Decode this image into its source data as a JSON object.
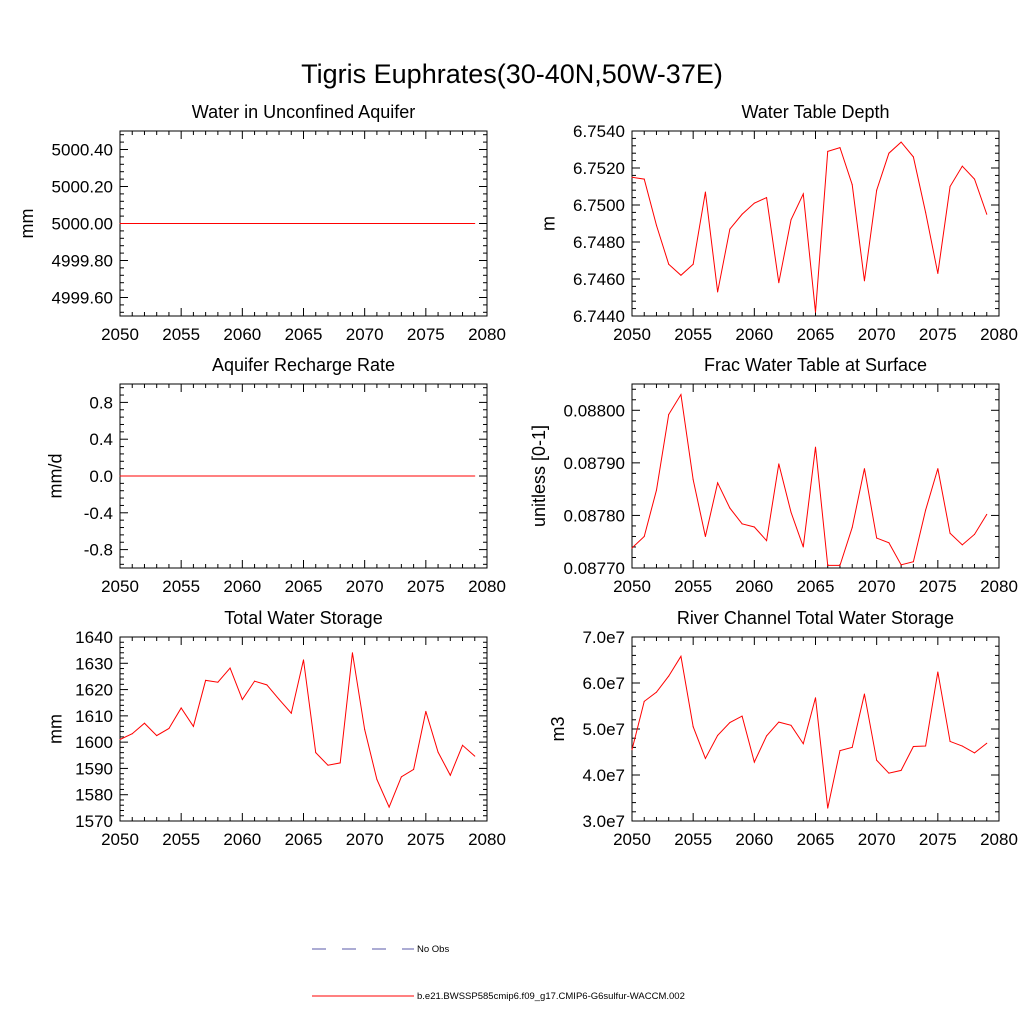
{
  "title": "Tigris Euphrates(30-40N,50W-37E)",
  "colors": {
    "model": "#ff0000",
    "obs": "#5a5aa8",
    "axes": "#000000"
  },
  "legend": {
    "obs_label": "No Obs",
    "model_label": "b.e21.BWSSP585cmip6.f09_g17.CMIP6-G6sulfur-WACCM.002"
  },
  "chart_data": [
    {
      "type": "line",
      "title": "Water in Unconfined Aquifer",
      "ylabel": "mm",
      "xlim": [
        2050,
        2080
      ],
      "ylim": [
        4999.5,
        5000.5
      ],
      "xticks": [
        2050,
        2055,
        2060,
        2065,
        2070,
        2075,
        2080
      ],
      "xtick_labels": [
        "2050",
        "2055",
        "2060",
        "2065",
        "2070",
        "2075",
        "2080"
      ],
      "yticks": [
        4999.6,
        4999.8,
        5000.0,
        5000.2,
        5000.4
      ],
      "ytick_labels": [
        "4999.60",
        "4999.80",
        "5000.00",
        "5000.20",
        "5000.40"
      ],
      "x": [
        2050,
        2051,
        2052,
        2053,
        2054,
        2055,
        2056,
        2057,
        2058,
        2059,
        2060,
        2061,
        2062,
        2063,
        2064,
        2065,
        2066,
        2067,
        2068,
        2069,
        2070,
        2071,
        2072,
        2073,
        2074,
        2075,
        2076,
        2077,
        2078,
        2079
      ],
      "values": [
        5000,
        5000,
        5000,
        5000,
        5000,
        5000,
        5000,
        5000,
        5000,
        5000,
        5000,
        5000,
        5000,
        5000,
        5000,
        5000,
        5000,
        5000,
        5000,
        5000,
        5000,
        5000,
        5000,
        5000,
        5000,
        5000,
        5000,
        5000,
        5000,
        5000
      ]
    },
    {
      "type": "line",
      "title": "Water Table Depth",
      "ylabel": "m",
      "xlim": [
        2050,
        2080
      ],
      "ylim": [
        6.744,
        6.754
      ],
      "xticks": [
        2050,
        2055,
        2060,
        2065,
        2070,
        2075,
        2080
      ],
      "xtick_labels": [
        "2050",
        "2055",
        "2060",
        "2065",
        "2070",
        "2075",
        "2080"
      ],
      "yticks": [
        6.744,
        6.746,
        6.748,
        6.75,
        6.752,
        6.754
      ],
      "ytick_labels": [
        "6.7440",
        "6.7460",
        "6.7480",
        "6.7500",
        "6.7520",
        "6.7540"
      ],
      "x": [
        2050,
        2051,
        2052,
        2053,
        2054,
        2055,
        2056,
        2057,
        2058,
        2059,
        2060,
        2061,
        2062,
        2063,
        2064,
        2065,
        2066,
        2067,
        2068,
        2069,
        2070,
        2071,
        2072,
        2073,
        2074,
        2075,
        2076,
        2077,
        2078,
        2079
      ],
      "values": [
        6.7515,
        6.7514,
        6.7489,
        6.7468,
        6.7462,
        6.7468,
        6.7507,
        6.7453,
        6.7487,
        6.7495,
        6.7501,
        6.7504,
        6.7458,
        6.7492,
        6.7506,
        6.7442,
        6.7529,
        6.7531,
        6.7511,
        6.7459,
        6.7508,
        6.7528,
        6.7534,
        6.7526,
        6.7496,
        6.7463,
        6.751,
        6.7521,
        6.7514,
        6.7495
      ]
    },
    {
      "type": "line",
      "title": "Aquifer Recharge Rate",
      "ylabel": "mm/d",
      "xlim": [
        2050,
        2080
      ],
      "ylim": [
        -1.0,
        1.0
      ],
      "xticks": [
        2050,
        2055,
        2060,
        2065,
        2070,
        2075,
        2080
      ],
      "xtick_labels": [
        "2050",
        "2055",
        "2060",
        "2065",
        "2070",
        "2075",
        "2080"
      ],
      "yticks": [
        -0.8,
        -0.4,
        0.0,
        0.4,
        0.8
      ],
      "ytick_labels": [
        "-0.8",
        "-0.4",
        "0.0",
        "0.4",
        "0.8"
      ],
      "x": [
        2050,
        2051,
        2052,
        2053,
        2054,
        2055,
        2056,
        2057,
        2058,
        2059,
        2060,
        2061,
        2062,
        2063,
        2064,
        2065,
        2066,
        2067,
        2068,
        2069,
        2070,
        2071,
        2072,
        2073,
        2074,
        2075,
        2076,
        2077,
        2078,
        2079
      ],
      "values": [
        0,
        0,
        0,
        0,
        0,
        0,
        0,
        0,
        0,
        0,
        0,
        0,
        0,
        0,
        0,
        0,
        0,
        0,
        0,
        0,
        0,
        0,
        0,
        0,
        0,
        0,
        0,
        0,
        0,
        0
      ]
    },
    {
      "type": "line",
      "title": "Frac Water Table at Surface",
      "ylabel": "unitless [0-1]",
      "xlim": [
        2050,
        2080
      ],
      "ylim": [
        0.0877,
        0.08805
      ],
      "xticks": [
        2050,
        2055,
        2060,
        2065,
        2070,
        2075,
        2080
      ],
      "xtick_labels": [
        "2050",
        "2055",
        "2060",
        "2065",
        "2070",
        "2075",
        "2080"
      ],
      "yticks": [
        0.0877,
        0.0878,
        0.0879,
        0.088
      ],
      "ytick_labels": [
        "0.08770",
        "0.08780",
        "0.08790",
        "0.08800"
      ],
      "x": [
        2050,
        2051,
        2052,
        2053,
        2054,
        2055,
        2056,
        2057,
        2058,
        2059,
        2060,
        2061,
        2062,
        2063,
        2064,
        2065,
        2066,
        2067,
        2068,
        2069,
        2070,
        2071,
        2072,
        2073,
        2074,
        2075,
        2076,
        2077,
        2078,
        2079
      ],
      "values": [
        0.087738,
        0.08776,
        0.087848,
        0.087992,
        0.08803,
        0.087868,
        0.08776,
        0.087862,
        0.087814,
        0.087784,
        0.087778,
        0.087752,
        0.087898,
        0.087806,
        0.08774,
        0.08793,
        0.087705,
        0.087705,
        0.087777,
        0.087889,
        0.087757,
        0.087748,
        0.087706,
        0.087712,
        0.08781,
        0.087889,
        0.087766,
        0.087744,
        0.087764,
        0.087802
      ]
    },
    {
      "type": "line",
      "title": "Total Water Storage",
      "ylabel": "mm",
      "xlim": [
        2050,
        2080
      ],
      "ylim": [
        1570,
        1640
      ],
      "xticks": [
        2050,
        2055,
        2060,
        2065,
        2070,
        2075,
        2080
      ],
      "xtick_labels": [
        "2050",
        "2055",
        "2060",
        "2065",
        "2070",
        "2075",
        "2080"
      ],
      "yticks": [
        1570,
        1580,
        1590,
        1600,
        1610,
        1620,
        1630,
        1640
      ],
      "ytick_labels": [
        "1570",
        "1580",
        "1590",
        "1600",
        "1610",
        "1620",
        "1630",
        "1640"
      ],
      "x": [
        2050,
        2051,
        2052,
        2053,
        2054,
        2055,
        2056,
        2057,
        2058,
        2059,
        2060,
        2061,
        2062,
        2063,
        2064,
        2065,
        2066,
        2067,
        2068,
        2069,
        2070,
        2071,
        2072,
        2073,
        2074,
        2075,
        2076,
        2077,
        2078,
        2079
      ],
      "values": [
        1601,
        1603.2,
        1607.2,
        1602.5,
        1605.2,
        1613,
        1606,
        1623.5,
        1622.8,
        1628.2,
        1616.2,
        1623.2,
        1621.8,
        1616.3,
        1611,
        1631.3,
        1596,
        1591.2,
        1592.1,
        1634,
        1604.8,
        1585.8,
        1575.3,
        1586.8,
        1589.6,
        1611.7,
        1596.2,
        1587.4,
        1598.8,
        1594.7
      ]
    },
    {
      "type": "line",
      "title": "River Channel Total Water Storage",
      "ylabel": "m3",
      "xlim": [
        2050,
        2080
      ],
      "ylim": [
        30000000,
        70000000
      ],
      "xticks": [
        2050,
        2055,
        2060,
        2065,
        2070,
        2075,
        2080
      ],
      "xtick_labels": [
        "2050",
        "2055",
        "2060",
        "2065",
        "2070",
        "2075",
        "2080"
      ],
      "yticks": [
        30000000,
        40000000,
        50000000,
        60000000,
        70000000
      ],
      "ytick_labels": [
        "3.0e7",
        "4.0e7",
        "5.0e7",
        "6.0e7",
        "7.0e7"
      ],
      "x": [
        2050,
        2051,
        2052,
        2053,
        2054,
        2055,
        2056,
        2057,
        2058,
        2059,
        2060,
        2061,
        2062,
        2063,
        2064,
        2065,
        2066,
        2067,
        2068,
        2069,
        2070,
        2071,
        2072,
        2073,
        2074,
        2075,
        2076,
        2077,
        2078,
        2079
      ],
      "values": [
        45500000,
        56000000,
        58000000,
        61500000,
        65800000,
        50500000,
        43600000,
        48600000,
        51400000,
        52800000,
        42800000,
        48500000,
        51500000,
        50800000,
        46800000,
        56800000,
        32800000,
        45300000,
        46000000,
        57600000,
        43200000,
        40400000,
        41000000,
        46200000,
        46300000,
        62400000,
        47300000,
        46300000,
        44800000,
        46900000
      ]
    }
  ]
}
